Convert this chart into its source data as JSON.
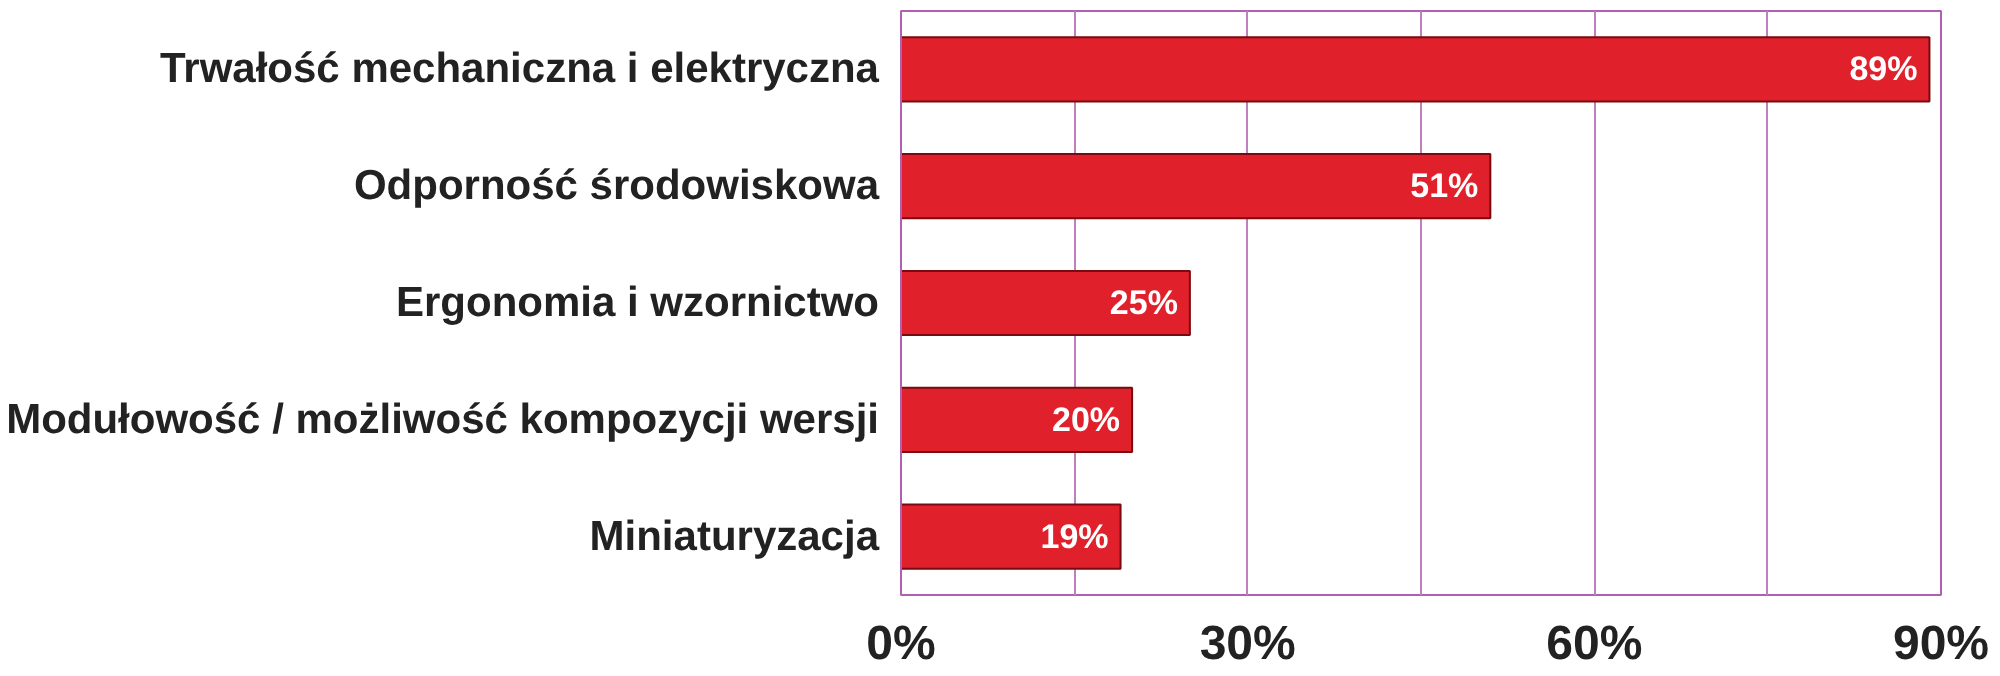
{
  "chart_data": {
    "type": "bar",
    "orientation": "horizontal",
    "categories": [
      "Trwałość mechaniczna i elektryczna",
      "Odporność środowiskowa",
      "Ergonomia i wzornictwo",
      "Modułowość / możliwość kompozycji wersji",
      "Miniaturyzacja"
    ],
    "values": [
      89,
      51,
      25,
      20,
      19
    ],
    "value_labels": [
      "89%",
      "51%",
      "25%",
      "20%",
      "19%"
    ],
    "color": "#e0202a",
    "xlim": [
      0,
      90
    ],
    "xticks": [
      {
        "value": 0,
        "label": "0%"
      },
      {
        "value": 15,
        "label": null
      },
      {
        "value": 30,
        "label": "30%"
      },
      {
        "value": 45,
        "label": null
      },
      {
        "value": 60,
        "label": "60%"
      },
      {
        "value": 75,
        "label": null
      },
      {
        "value": 90,
        "label": "90%"
      }
    ],
    "grid": "x"
  }
}
